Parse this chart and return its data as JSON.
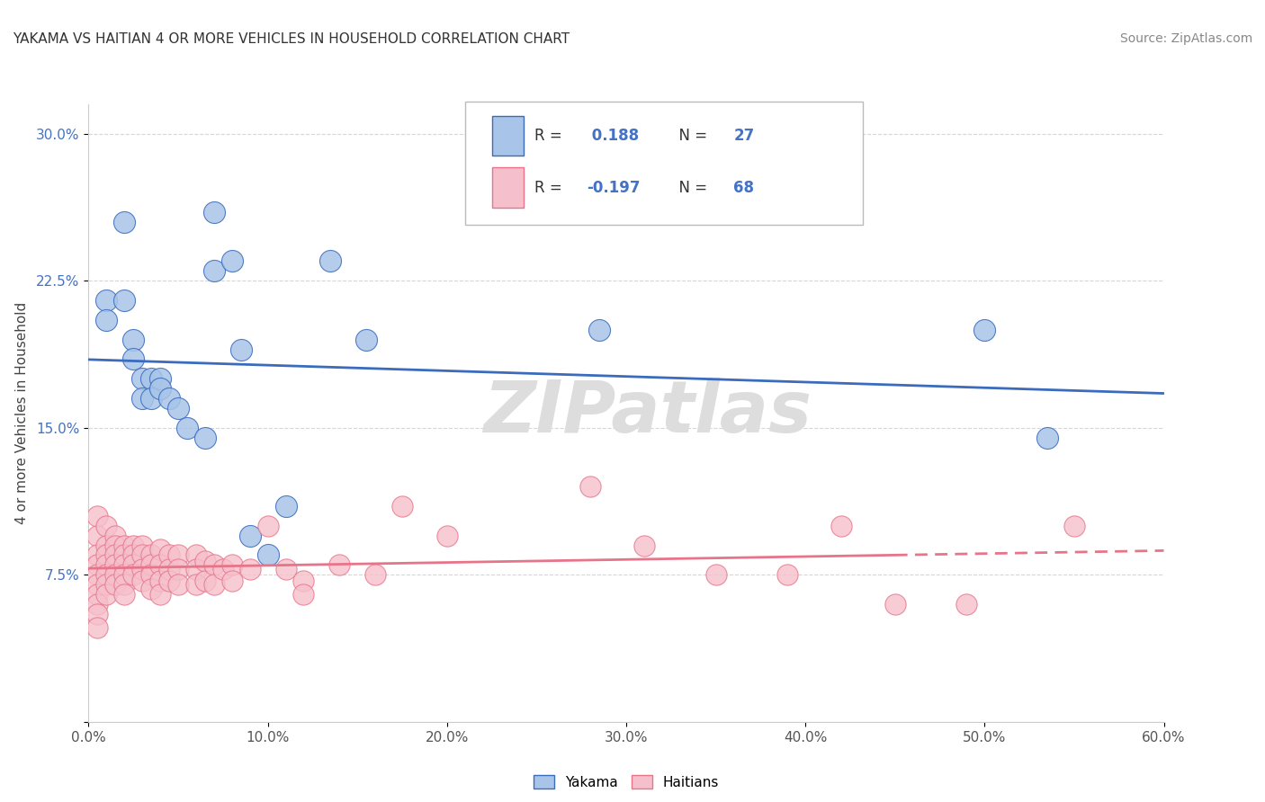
{
  "title": "YAKAMA VS HAITIAN 4 OR MORE VEHICLES IN HOUSEHOLD CORRELATION CHART",
  "source": "Source: ZipAtlas.com",
  "ylabel": "4 or more Vehicles in Household",
  "xlim": [
    0.0,
    0.6
  ],
  "ylim": [
    0.0,
    0.315
  ],
  "xticks": [
    0.0,
    0.1,
    0.2,
    0.3,
    0.4,
    0.5,
    0.6
  ],
  "xticklabels": [
    "0.0%",
    "10.0%",
    "20.0%",
    "30.0%",
    "40.0%",
    "50.0%",
    "60.0%"
  ],
  "yticks": [
    0.0,
    0.075,
    0.15,
    0.225,
    0.3
  ],
  "yticklabels": [
    "",
    "7.5%",
    "15.0%",
    "22.5%",
    "30.0%"
  ],
  "yakama_scatter": [
    [
      0.01,
      0.215
    ],
    [
      0.01,
      0.205
    ],
    [
      0.02,
      0.255
    ],
    [
      0.02,
      0.215
    ],
    [
      0.025,
      0.195
    ],
    [
      0.025,
      0.185
    ],
    [
      0.03,
      0.175
    ],
    [
      0.03,
      0.165
    ],
    [
      0.035,
      0.175
    ],
    [
      0.035,
      0.165
    ],
    [
      0.04,
      0.175
    ],
    [
      0.04,
      0.17
    ],
    [
      0.045,
      0.165
    ],
    [
      0.05,
      0.16
    ],
    [
      0.055,
      0.15
    ],
    [
      0.065,
      0.145
    ],
    [
      0.07,
      0.26
    ],
    [
      0.07,
      0.23
    ],
    [
      0.08,
      0.235
    ],
    [
      0.085,
      0.19
    ],
    [
      0.09,
      0.095
    ],
    [
      0.1,
      0.085
    ],
    [
      0.11,
      0.11
    ],
    [
      0.135,
      0.235
    ],
    [
      0.155,
      0.195
    ],
    [
      0.285,
      0.2
    ],
    [
      0.5,
      0.2
    ],
    [
      0.535,
      0.145
    ]
  ],
  "haitian_scatter": [
    [
      0.005,
      0.105
    ],
    [
      0.005,
      0.095
    ],
    [
      0.005,
      0.085
    ],
    [
      0.005,
      0.08
    ],
    [
      0.005,
      0.075
    ],
    [
      0.005,
      0.07
    ],
    [
      0.005,
      0.065
    ],
    [
      0.005,
      0.06
    ],
    [
      0.005,
      0.055
    ],
    [
      0.005,
      0.048
    ],
    [
      0.01,
      0.1
    ],
    [
      0.01,
      0.09
    ],
    [
      0.01,
      0.085
    ],
    [
      0.01,
      0.08
    ],
    [
      0.01,
      0.075
    ],
    [
      0.01,
      0.07
    ],
    [
      0.01,
      0.065
    ],
    [
      0.015,
      0.095
    ],
    [
      0.015,
      0.09
    ],
    [
      0.015,
      0.085
    ],
    [
      0.015,
      0.08
    ],
    [
      0.015,
      0.075
    ],
    [
      0.015,
      0.07
    ],
    [
      0.02,
      0.09
    ],
    [
      0.02,
      0.085
    ],
    [
      0.02,
      0.08
    ],
    [
      0.02,
      0.075
    ],
    [
      0.02,
      0.07
    ],
    [
      0.02,
      0.065
    ],
    [
      0.025,
      0.09
    ],
    [
      0.025,
      0.085
    ],
    [
      0.025,
      0.08
    ],
    [
      0.025,
      0.075
    ],
    [
      0.03,
      0.09
    ],
    [
      0.03,
      0.085
    ],
    [
      0.03,
      0.078
    ],
    [
      0.03,
      0.072
    ],
    [
      0.035,
      0.085
    ],
    [
      0.035,
      0.08
    ],
    [
      0.035,
      0.075
    ],
    [
      0.035,
      0.068
    ],
    [
      0.04,
      0.088
    ],
    [
      0.04,
      0.08
    ],
    [
      0.04,
      0.072
    ],
    [
      0.04,
      0.065
    ],
    [
      0.045,
      0.085
    ],
    [
      0.045,
      0.078
    ],
    [
      0.045,
      0.072
    ],
    [
      0.05,
      0.085
    ],
    [
      0.05,
      0.078
    ],
    [
      0.05,
      0.07
    ],
    [
      0.06,
      0.085
    ],
    [
      0.06,
      0.078
    ],
    [
      0.06,
      0.07
    ],
    [
      0.065,
      0.082
    ],
    [
      0.065,
      0.072
    ],
    [
      0.07,
      0.08
    ],
    [
      0.07,
      0.07
    ],
    [
      0.075,
      0.078
    ],
    [
      0.08,
      0.08
    ],
    [
      0.08,
      0.072
    ],
    [
      0.09,
      0.078
    ],
    [
      0.1,
      0.1
    ],
    [
      0.11,
      0.078
    ],
    [
      0.12,
      0.072
    ],
    [
      0.12,
      0.065
    ],
    [
      0.14,
      0.08
    ],
    [
      0.16,
      0.075
    ],
    [
      0.175,
      0.11
    ],
    [
      0.2,
      0.095
    ],
    [
      0.28,
      0.12
    ],
    [
      0.31,
      0.09
    ],
    [
      0.35,
      0.075
    ],
    [
      0.39,
      0.075
    ],
    [
      0.42,
      0.1
    ],
    [
      0.45,
      0.06
    ],
    [
      0.49,
      0.06
    ],
    [
      0.55,
      0.1
    ]
  ],
  "yakama_line_color": "#3A6BBD",
  "haitian_line_color": "#E8748A",
  "yakama_scatter_color": "#A8C4E8",
  "haitian_scatter_color": "#F5C0CB",
  "background_color": "#ffffff",
  "grid_color": "#cccccc",
  "watermark_text": "ZIPatlas",
  "figsize": [
    14.06,
    8.92
  ],
  "dpi": 100
}
